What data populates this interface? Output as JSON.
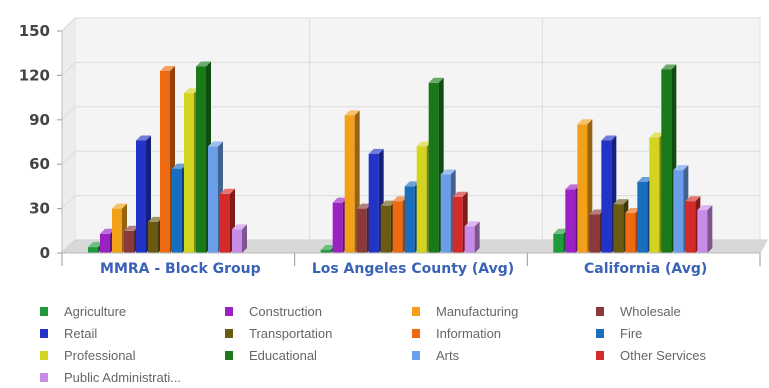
{
  "chart_data": {
    "type": "bar",
    "title": "",
    "xlabel": "",
    "ylabel": "",
    "ylim": [
      0,
      150
    ],
    "yticks": [
      "0",
      "30",
      "60",
      "90",
      "120",
      "150"
    ],
    "grid": true,
    "legend_position": "bottom",
    "categories": [
      "MMRA - Block Group",
      "Los Angeles County (Avg)",
      "California (Avg)"
    ],
    "series": [
      {
        "name": "Agriculture",
        "color": "#1e9a3c",
        "values": [
          4,
          2,
          13
        ]
      },
      {
        "name": "Construction",
        "color": "#9a22c2",
        "values": [
          13,
          34,
          43
        ]
      },
      {
        "name": "Manufacturing",
        "color": "#f2a01a",
        "values": [
          30,
          93,
          87
        ]
      },
      {
        "name": "Wholesale",
        "color": "#8a3a3a",
        "values": [
          15,
          30,
          26
        ]
      },
      {
        "name": "Retail",
        "color": "#2233c8",
        "values": [
          76,
          67,
          76
        ]
      },
      {
        "name": "Transportation",
        "color": "#6a5a12",
        "values": [
          21,
          32,
          33
        ]
      },
      {
        "name": "Information",
        "color": "#ee6a10",
        "values": [
          123,
          35,
          27
        ]
      },
      {
        "name": "Fire",
        "color": "#1a6ec0",
        "values": [
          57,
          45,
          48
        ]
      },
      {
        "name": "Professional",
        "color": "#d2d420",
        "values": [
          108,
          72,
          78
        ]
      },
      {
        "name": "Educational",
        "color": "#1a7a1a",
        "values": [
          126,
          115,
          124
        ]
      },
      {
        "name": "Arts",
        "color": "#6a9ee8",
        "values": [
          72,
          53,
          56
        ]
      },
      {
        "name": "Other Services",
        "color": "#d42a2a",
        "values": [
          40,
          38,
          35
        ]
      },
      {
        "name": "Public Administrati...",
        "color": "#c98be8",
        "values": [
          16,
          18,
          29
        ]
      }
    ]
  }
}
